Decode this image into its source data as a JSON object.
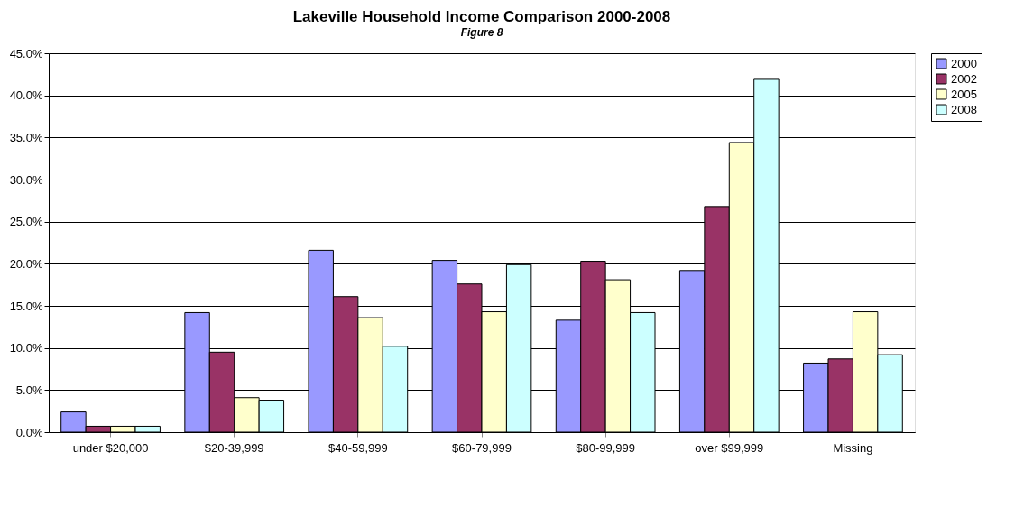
{
  "chart_data": {
    "type": "bar",
    "title": "Lakeville Household Income Comparison 2000-2008",
    "annotations": [
      "Figure 8"
    ],
    "categories": [
      "under $20,000",
      "$20-39,999",
      "$40-59,999",
      "$60-79,999",
      "$80-99,999",
      "over $99,999",
      "Missing"
    ],
    "series": [
      {
        "name": "2000",
        "color": "#9999ff",
        "values": [
          2.4,
          14.2,
          21.6,
          20.4,
          13.3,
          19.2,
          8.2
        ]
      },
      {
        "name": "2002",
        "color": "#993366",
        "values": [
          0.7,
          9.5,
          16.1,
          17.6,
          20.3,
          26.8,
          8.7
        ]
      },
      {
        "name": "2005",
        "color": "#ffffcc",
        "values": [
          0.7,
          4.1,
          13.6,
          14.3,
          18.1,
          34.4,
          14.3
        ]
      },
      {
        "name": "2008",
        "color": "#ccffff",
        "values": [
          0.7,
          3.8,
          10.2,
          19.9,
          14.2,
          41.9,
          9.2
        ]
      }
    ],
    "ylim": [
      0,
      45
    ],
    "yticks": [
      {
        "value": 0,
        "label": "0.0%"
      },
      {
        "value": 5,
        "label": "5.0%"
      },
      {
        "value": 10,
        "label": "10.0%"
      },
      {
        "value": 15,
        "label": "15.0%"
      },
      {
        "value": 20,
        "label": "20.0%"
      },
      {
        "value": 25,
        "label": "25.0%"
      },
      {
        "value": 30,
        "label": "30.0%"
      },
      {
        "value": 35,
        "label": "35.0%"
      },
      {
        "value": 40,
        "label": "40.0%"
      },
      {
        "value": 45,
        "label": "45.0%"
      }
    ],
    "grid": "y",
    "legend": "right"
  }
}
